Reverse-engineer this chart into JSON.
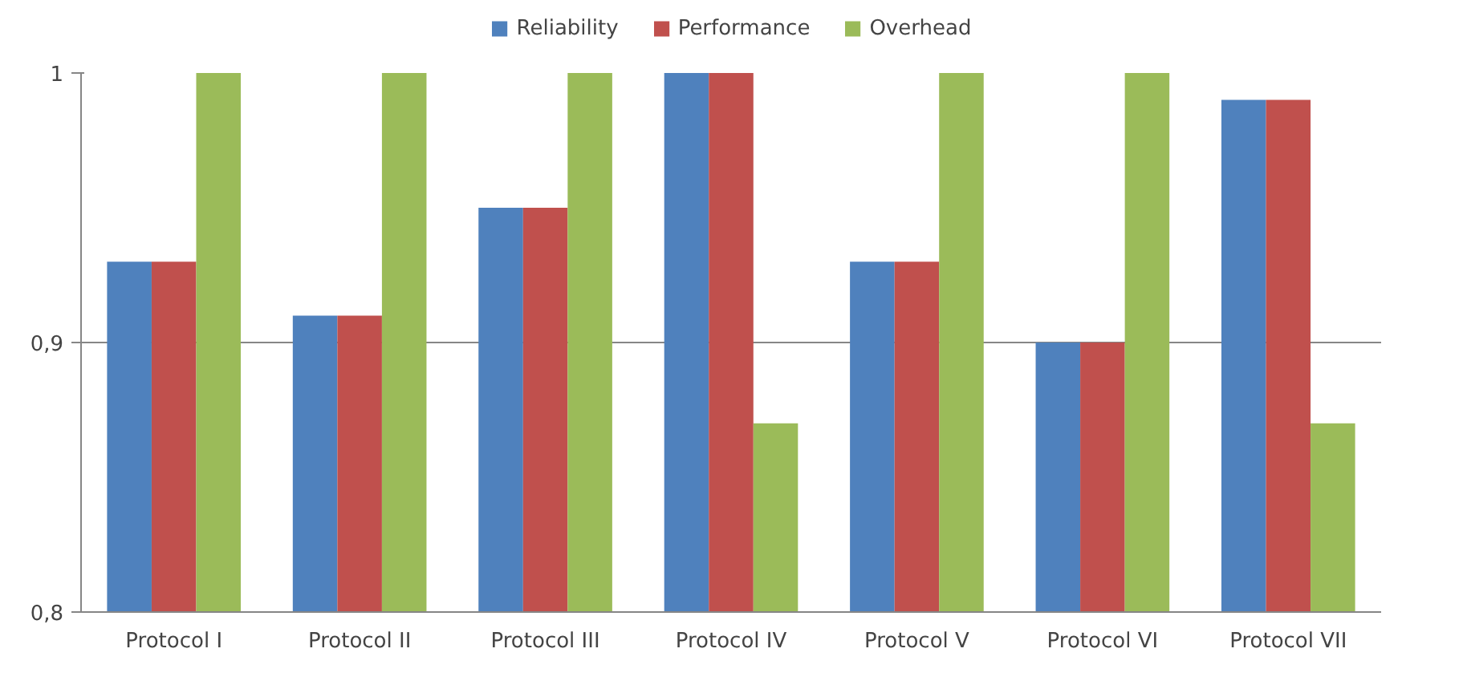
{
  "chart_data": {
    "type": "bar",
    "categories": [
      "Protocol I",
      "Protocol II",
      "Protocol III",
      "Protocol IV",
      "Protocol V",
      "Protocol VI",
      "Protocol VII"
    ],
    "series": [
      {
        "name": "Reliability",
        "color": "#4f81bd",
        "values": [
          0.93,
          0.91,
          0.95,
          1,
          0.93,
          0.9,
          0.99
        ]
      },
      {
        "name": "Performance",
        "color": "#c0504d",
        "values": [
          0.93,
          0.91,
          0.95,
          1,
          0.93,
          0.9,
          0.99
        ]
      },
      {
        "name": "Overhead",
        "color": "#9bbb59",
        "values": [
          1,
          1,
          1,
          0.87,
          1,
          1,
          0.87
        ]
      }
    ],
    "ylim": [
      0.8,
      1
    ],
    "yticks": [
      {
        "value": 0.8,
        "label": "0,8"
      },
      {
        "value": 0.9,
        "label": "0,9"
      },
      {
        "value": 1,
        "label": "1"
      }
    ],
    "grid": "y",
    "legend": "top"
  }
}
